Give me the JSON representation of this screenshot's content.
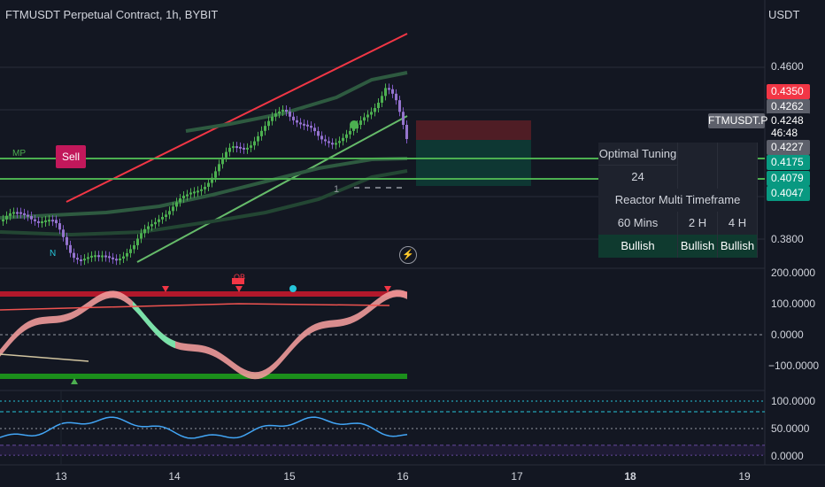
{
  "header": {
    "title": "FTMUSDT Perpetual Contract, 1h, BYBIT",
    "currency": "USDT"
  },
  "price_axis": {
    "ticks": [
      "0.4600",
      "0.3800"
    ],
    "labels": [
      {
        "text": "0.4350",
        "color": "#f23645"
      },
      {
        "text": "0.4262",
        "color": "#5d606b"
      },
      {
        "text": "0.4248",
        "color": "#131722"
      },
      {
        "text": "46:48",
        "color": "#131722"
      },
      {
        "text": "0.4227",
        "color": "#5d606b"
      },
      {
        "text": "0.4175",
        "color": "#089981"
      },
      {
        "text": "0.4079",
        "color": "#089981"
      },
      {
        "text": "0.4047",
        "color": "#089981"
      }
    ],
    "symbol_label": "FTMUSDT.P"
  },
  "osc_axis": {
    "ticks": [
      "200.0000",
      "100.0000",
      "0.0000",
      "−100.0000"
    ]
  },
  "rsi_axis": {
    "ticks": [
      "100.0000",
      "50.0000",
      "0.0000"
    ]
  },
  "time_axis": {
    "ticks": [
      "13",
      "14",
      "15",
      "16",
      "17",
      "18",
      "19"
    ]
  },
  "panel": {
    "optimal_label": "Optimal Tuning",
    "optimal_value": "24",
    "reactor_title": "Reactor Multi Timeframe",
    "tf": [
      "60 Mins",
      "2 H",
      "4 H"
    ],
    "status": [
      "Bullish",
      "Bullish",
      "Bullish"
    ]
  },
  "annotations": {
    "sell": "Sell",
    "mp": "MP",
    "ob": "OB",
    "n": "N",
    "one": "1",
    "bolt": "⚡"
  },
  "colors": {
    "bg": "#131722",
    "bull": "#26a69a",
    "bear": "#ef5350",
    "green_line": "#4caf50",
    "red_line": "#f23645"
  }
}
